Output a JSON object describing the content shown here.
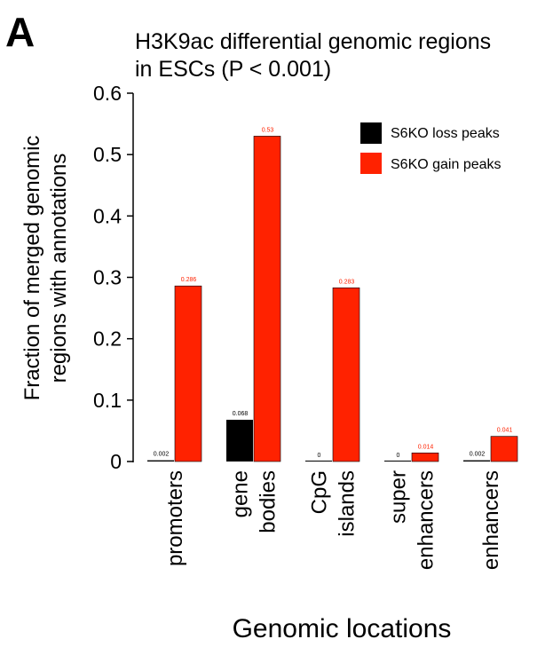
{
  "panel_label": "A",
  "chart_data": {
    "type": "bar",
    "title_lines": [
      "H3K9ac differential genomic regions",
      "in ESCs (P < 0.001)"
    ],
    "ylabel_lines": [
      "Fraction of merged genomic",
      "regions with annotations"
    ],
    "xlabel": "Genomic locations",
    "ylim": [
      0,
      0.6
    ],
    "yticks": [
      0,
      0.1,
      0.2,
      0.3,
      0.4,
      0.5,
      0.6
    ],
    "ytick_labels": [
      "0",
      "0.1",
      "0.2",
      "0.3",
      "0.4",
      "0.5",
      "0.6"
    ],
    "categories": [
      [
        "promoters"
      ],
      [
        "gene",
        "bodies"
      ],
      [
        "CpG",
        "islands"
      ],
      [
        "super",
        "enhancers"
      ],
      [
        "enhancers"
      ]
    ],
    "series": [
      {
        "name": "S6KO loss peaks",
        "color": "#000000",
        "label_color": "#000000",
        "values": [
          0.002,
          0.068,
          0,
          0,
          0.002
        ],
        "value_labels": [
          "0.002",
          "0.068",
          "0",
          "0",
          "0.002"
        ]
      },
      {
        "name": "S6KO gain peaks",
        "color": "#ff2200",
        "label_color": "#ff2200",
        "values": [
          0.286,
          0.53,
          0.283,
          0.014,
          0.041
        ],
        "value_labels": [
          "0.286",
          "0.53",
          "0.283",
          "0.014",
          "0.041"
        ]
      }
    ],
    "legend_position": "top-right",
    "grid": false
  }
}
